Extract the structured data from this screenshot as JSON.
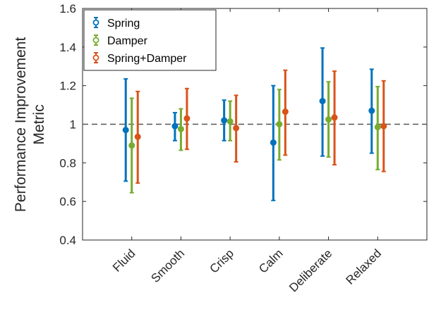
{
  "chart_data": {
    "type": "errorbar",
    "categories": [
      "Fluid",
      "Smooth",
      "Crisp",
      "Calm",
      "Deliberate",
      "Relaxed"
    ],
    "ylabel_lines": [
      "Performance Improvement",
      "Metric"
    ],
    "xlabel": "",
    "ylim": [
      0.4,
      1.6
    ],
    "yticks": [
      "0.4",
      "0.6",
      "0.8",
      "1",
      "1.2",
      "1.4",
      "1.6"
    ],
    "reference_line": 1.0,
    "grid": false,
    "legend_position": "top-left",
    "series": [
      {
        "name": "Spring",
        "color": "#0072BD",
        "values": [
          0.97,
          0.99,
          1.02,
          0.905,
          1.12,
          1.07
        ],
        "lower": [
          0.705,
          0.915,
          0.915,
          0.605,
          0.835,
          0.85
        ],
        "upper": [
          1.235,
          1.06,
          1.125,
          1.2,
          1.395,
          1.285
        ]
      },
      {
        "name": "Damper",
        "color": "#77AC30",
        "values": [
          0.89,
          0.975,
          1.015,
          1.0,
          1.025,
          0.985
        ],
        "lower": [
          0.645,
          0.865,
          0.915,
          0.815,
          0.83,
          0.765
        ],
        "upper": [
          1.135,
          1.08,
          1.12,
          1.18,
          1.22,
          1.195
        ]
      },
      {
        "name": "Spring+Damper",
        "color": "#D95319",
        "values": [
          0.935,
          1.03,
          0.98,
          1.065,
          1.035,
          0.99
        ],
        "lower": [
          0.695,
          0.87,
          0.805,
          0.84,
          0.79,
          0.755
        ],
        "upper": [
          1.17,
          1.185,
          1.15,
          1.28,
          1.275,
          1.225
        ]
      }
    ]
  }
}
